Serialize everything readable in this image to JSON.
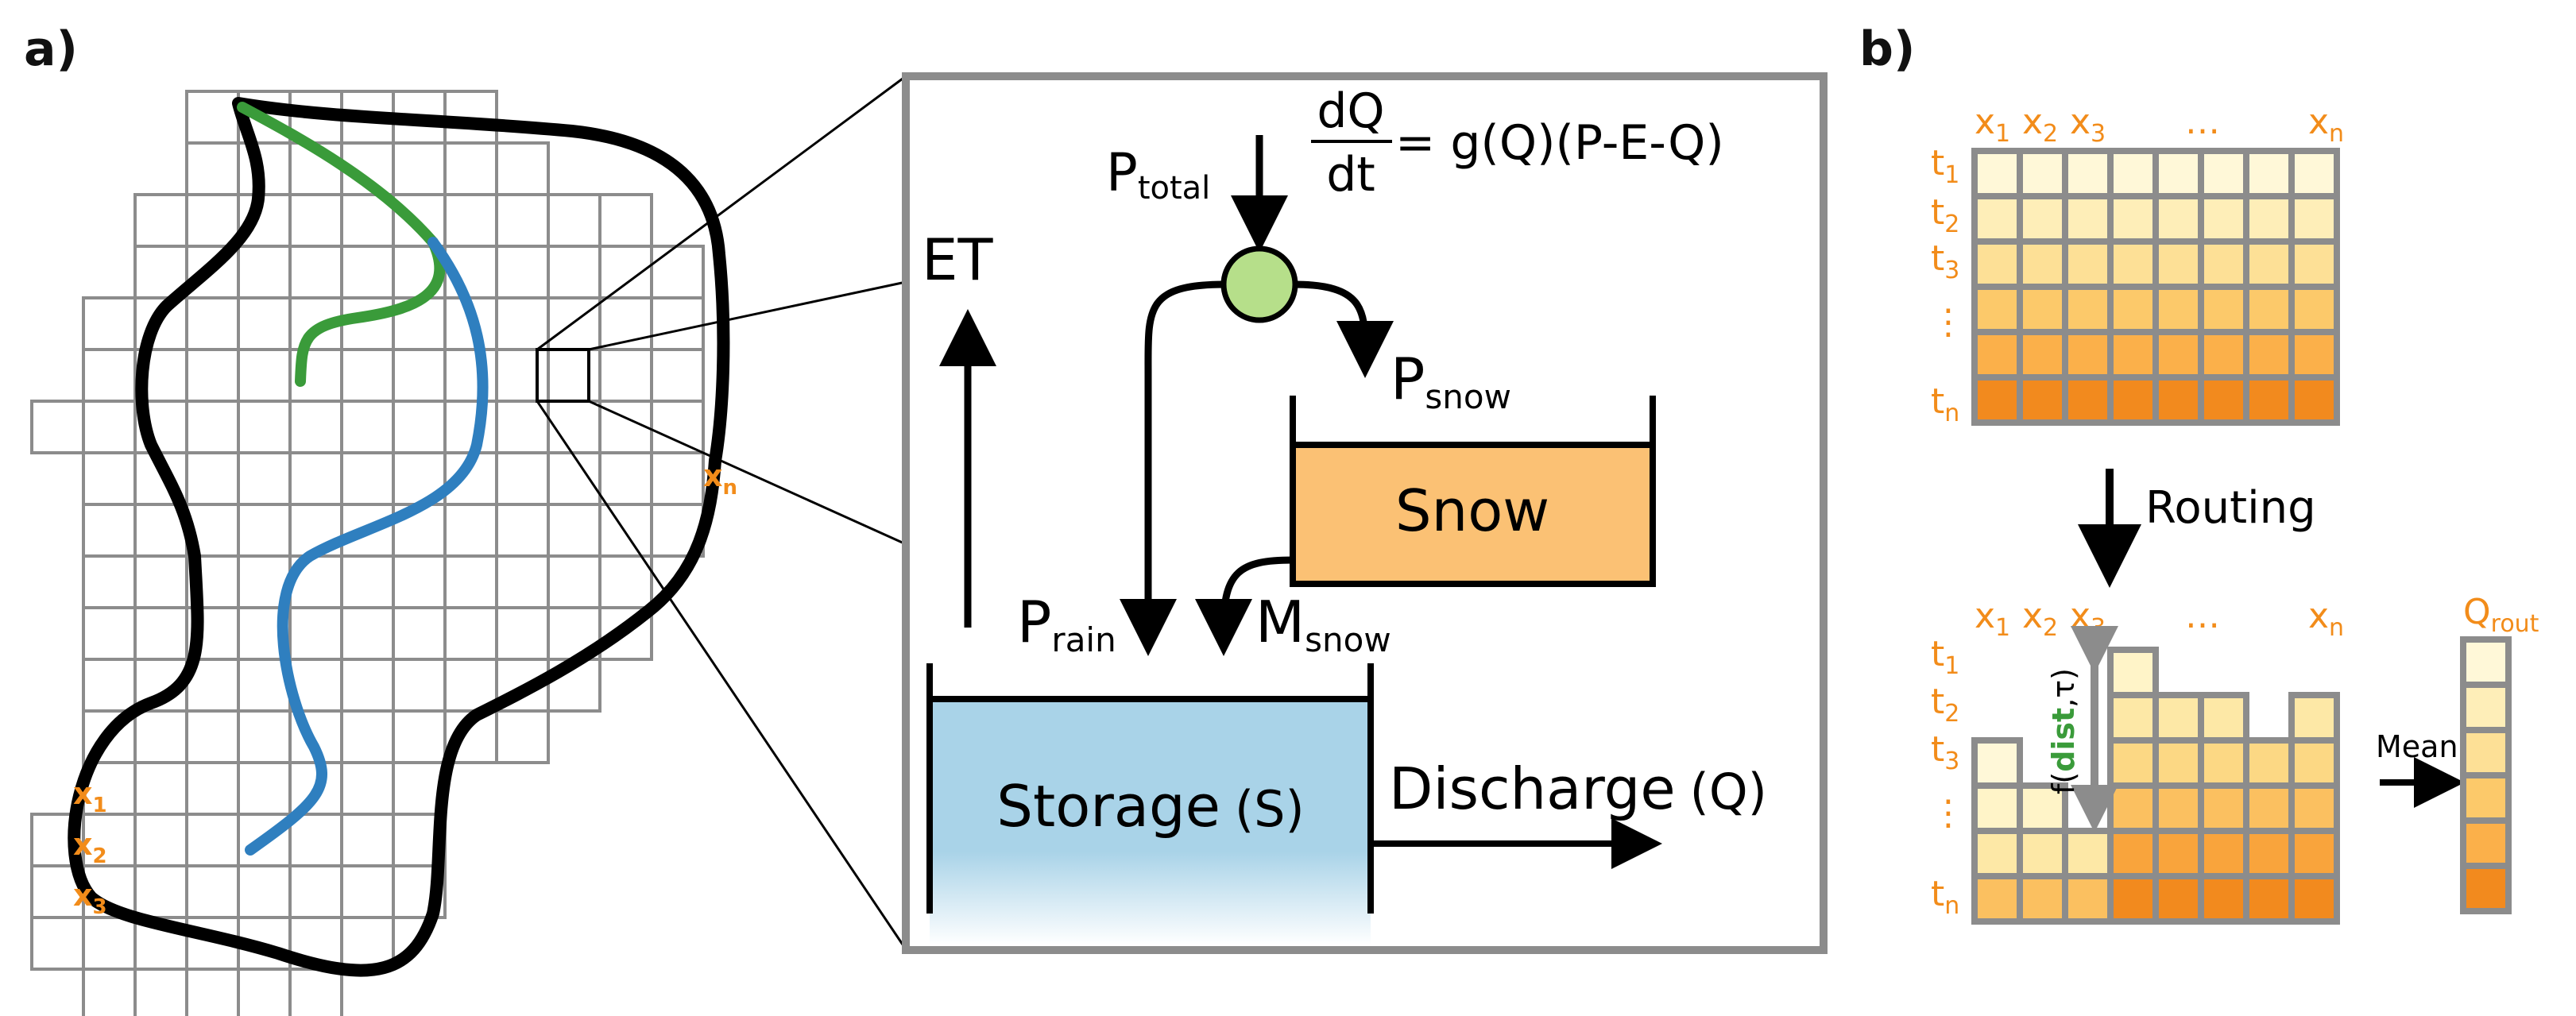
{
  "panel_a": {
    "label": "a)",
    "grid_labels": {
      "x1": "x",
      "x1_sub": "1",
      "x2": "x",
      "x2_sub": "2",
      "x3": "x",
      "x3_sub": "3",
      "xn": "x",
      "xn_sub": "n"
    }
  },
  "model": {
    "equation_num": "dQ",
    "equation_den": "dt",
    "equation_rhs": "= g(Q)(P-E-Q)",
    "p_total": "P",
    "p_total_sub": "total",
    "et": "ET",
    "p_snow": "P",
    "p_snow_sub": "snow",
    "snow": "Snow",
    "p_rain": "P",
    "p_rain_sub": "rain",
    "m_snow": "M",
    "m_snow_sub": "snow",
    "storage": "Storage",
    "storage_sym": "(S)",
    "discharge": "Discharge",
    "discharge_sym": "(Q)"
  },
  "panel_b": {
    "label": "b)",
    "x_headers": [
      {
        "base": "x",
        "sub": "1"
      },
      {
        "base": "x",
        "sub": "2"
      },
      {
        "base": "x",
        "sub": "3"
      },
      {
        "base": "…",
        "sub": ""
      },
      {
        "base": "x",
        "sub": "n"
      }
    ],
    "t_headers": [
      {
        "base": "t",
        "sub": "1"
      },
      {
        "base": "t",
        "sub": "2"
      },
      {
        "base": "t",
        "sub": "3"
      },
      {
        "base": "⋮",
        "sub": ""
      },
      {
        "base": "t",
        "sub": "n"
      }
    ],
    "routing": "Routing",
    "shift_func": "f(",
    "shift_dist": "dist",
    "shift_rest": ",τ)",
    "mean": "Mean",
    "q_rout": "Q",
    "q_rout_sub": "rout"
  },
  "colors": {
    "orange_text": "#f28c1a",
    "river_green": "#3a9b3a",
    "river_blue": "#2f7fbf",
    "snow_fill": "#fbc174",
    "storage_fill": "#a9d3e8",
    "node_fill": "#b6df8a",
    "grid_gray": "#8c8c8c",
    "row_shades": [
      "#fff8d8",
      "#feeeb8",
      "#fde096",
      "#fcc96a",
      "#fbb04a",
      "#f28a1e"
    ]
  }
}
